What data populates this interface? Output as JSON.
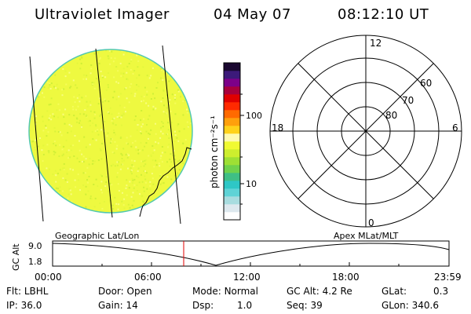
{
  "header": {
    "instrument": "Ultraviolet Imager",
    "date": "04 May 07",
    "time": "08:12:10 UT"
  },
  "colorbar": {
    "unit_label": "photon cm⁻²s⁻¹",
    "tick_100": "100",
    "tick_10": "10",
    "colors": [
      "#ffffff",
      "#dde8ee",
      "#a8dcdf",
      "#5fd3d6",
      "#2ec7c6",
      "#3fbf85",
      "#6fd24c",
      "#9ee034",
      "#cdee2e",
      "#f0fa33",
      "#fffab0",
      "#ffd21a",
      "#ffa00c",
      "#ff6a00",
      "#ff2a00",
      "#e00000",
      "#a8003c",
      "#7c0088",
      "#3c1a7a",
      "#1a0830"
    ]
  },
  "image_left": {
    "fill_color": "#eef940",
    "edge_color": "#52c8b0"
  },
  "polar": {
    "mlt_12": "12",
    "mlt_18": "18",
    "mlt_6": "6",
    "mlt_0": "0",
    "lat_60": "60",
    "lat_70": "70",
    "lat_80": "80"
  },
  "timeline": {
    "left_title": "Geographic Lat/Lon",
    "right_title": "Apex MLat/MLT",
    "y_axis_label": "GC Alt",
    "y_max": "9.0",
    "y_min": "1.8",
    "x_ticks": [
      "00:00",
      "06:00",
      "12:00",
      "18:00",
      "23:59"
    ],
    "marker_color": "#e00000"
  },
  "status": {
    "flt_label": "Flt:",
    "flt_value": "LBHL",
    "door_label": "Door:",
    "door_value": "Open",
    "mode_label": "Mode:",
    "mode_value": "Normal",
    "gcalt_label": "GC Alt:",
    "gcalt_value": "4.2 Re",
    "glat_label": "GLat:",
    "glat_value": "0.3",
    "ip_label": "IP:",
    "ip_value": "36.0",
    "gain_label": "Gain:",
    "gain_value": "14",
    "dsp_label": "Dsp:",
    "dsp_value": "1.0",
    "seq_label": "Seq:",
    "seq_value": "39",
    "glon_label": "GLon:",
    "glon_value": "340.6"
  }
}
